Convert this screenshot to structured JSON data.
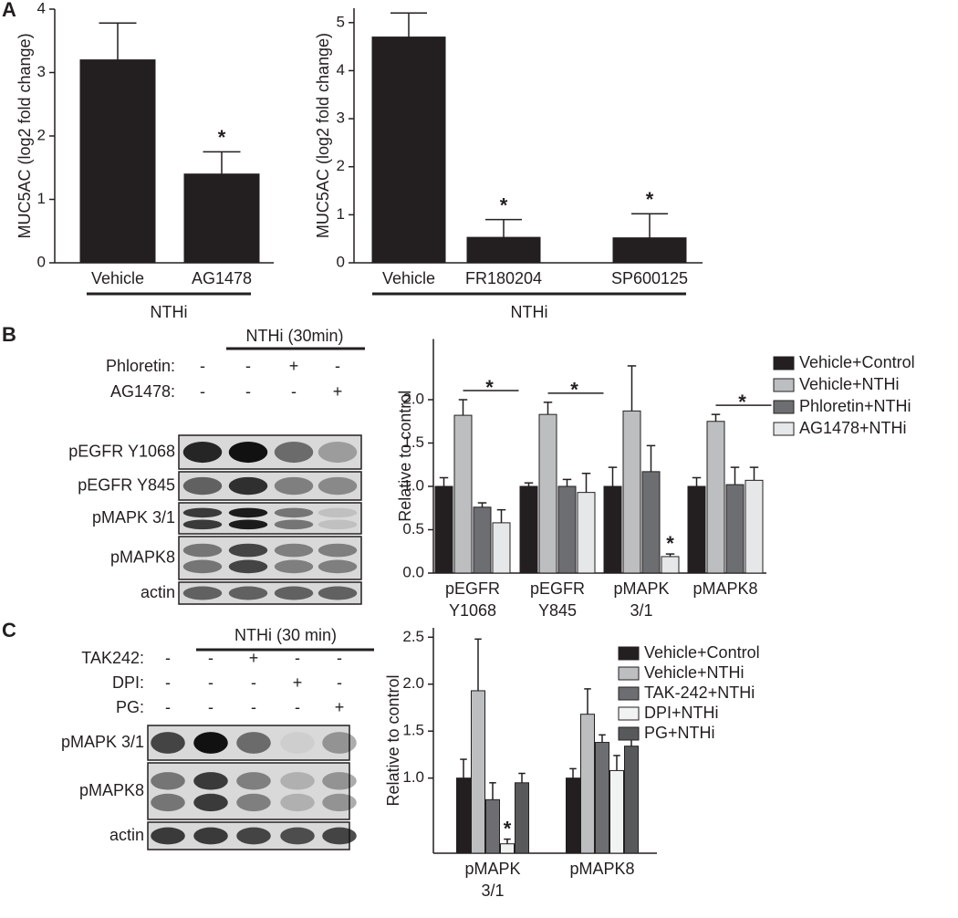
{
  "panels": [
    "A",
    "B",
    "C"
  ],
  "chart_data": [
    {
      "type": "bar",
      "ylabel": "MUC5AC (log2 fold change)",
      "categories": [
        "Vehicle",
        "AG1478"
      ],
      "values": [
        3.2,
        1.4
      ],
      "errors": [
        0.58,
        0.35
      ],
      "color": "#231f20",
      "ylim": [
        0,
        4
      ],
      "yticks": [
        0,
        1,
        2,
        3,
        4
      ],
      "group_label": "NTHi",
      "annotations": [
        {
          "text": "*",
          "category": 1
        }
      ]
    },
    {
      "type": "bar",
      "ylabel": "MUC5AC (log2 fold change)",
      "categories": [
        "Vehicle",
        "FR180204",
        "SP600125"
      ],
      "values": [
        4.7,
        0.53,
        0.52
      ],
      "errors": [
        0.5,
        0.37,
        0.5
      ],
      "color": "#231f20",
      "ylim": [
        0,
        5.3
      ],
      "yticks": [
        0,
        1,
        2,
        3,
        4,
        5
      ],
      "group_label": "NTHi",
      "annotations": [
        {
          "text": "*",
          "category": 1
        },
        {
          "text": "*",
          "category": 2
        }
      ]
    },
    {
      "type": "grouped_bar",
      "ylabel": "Relative to control",
      "categories": [
        "pEGFR Y1068",
        "pEGFR Y845",
        "pMAPK 3/1",
        "pMAPK8"
      ],
      "series": [
        {
          "name": "Vehicle+Control",
          "color": "#231f20",
          "values": [
            1.0,
            1.0,
            1.0,
            1.0
          ],
          "errors": [
            0.1,
            0.04,
            0.22,
            0.1
          ]
        },
        {
          "name": "Vehicle+NTHi",
          "color": "#bcbec0",
          "values": [
            1.82,
            1.83,
            1.87,
            1.75
          ],
          "errors": [
            0.18,
            0.14,
            0.52,
            0.08
          ]
        },
        {
          "name": "Phloretin+NTHi",
          "color": "#6d6e71",
          "values": [
            0.76,
            1.0,
            1.17,
            1.02
          ],
          "errors": [
            0.05,
            0.08,
            0.3,
            0.2
          ]
        },
        {
          "name": "AG1478+NTHi",
          "color": "#e6e7e8",
          "values": [
            0.58,
            0.93,
            0.19,
            1.07
          ],
          "errors": [
            0.15,
            0.22,
            0.03,
            0.15
          ]
        }
      ],
      "ylim": [
        0,
        2.7
      ],
      "yticks": [
        {
          "value": 0,
          "label": "0.0"
        },
        0.5,
        {
          "value": 1,
          "label": "1.0"
        },
        1.5,
        {
          "value": 2,
          "label": "2.0"
        }
      ],
      "annotations": [
        {
          "text": "*",
          "category": 0,
          "bracket": true
        },
        {
          "text": "*",
          "category": 1,
          "bracket": true
        },
        {
          "text": "*",
          "category": 2,
          "series": 3
        },
        {
          "text": "*",
          "category": 3,
          "bracket": true
        }
      ]
    },
    {
      "type": "grouped_bar",
      "ylabel": "Relative to control",
      "categories": [
        "pMAPK 3/1",
        "pMAPK8"
      ],
      "series": [
        {
          "name": "Vehicle+Control",
          "color": "#231f20",
          "values": [
            1.0,
            1.0
          ],
          "errors": [
            0.2,
            0.1
          ]
        },
        {
          "name": "Vehicle+NTHi",
          "color": "#bcbec0",
          "values": [
            1.93,
            1.68
          ],
          "errors": [
            0.55,
            0.27
          ]
        },
        {
          "name": "TAK-242+NTHi",
          "color": "#6d6e71",
          "values": [
            0.77,
            1.38
          ],
          "errors": [
            0.18,
            0.08
          ]
        },
        {
          "name": "DPI+NTHi",
          "color": "#f1f2f2",
          "values": [
            0.3,
            1.08
          ],
          "errors": [
            0.05,
            0.16
          ]
        },
        {
          "name": "PG+NTHi",
          "color": "#58595b",
          "values": [
            0.95,
            1.34
          ],
          "errors": [
            0.1,
            0.13
          ]
        }
      ],
      "ylim": [
        0.2,
        2.6
      ],
      "yticks": [
        {
          "value": 1,
          "label": "1.0"
        },
        1.5,
        {
          "value": 2,
          "label": "2.0"
        },
        2.5
      ],
      "annotations": [
        {
          "text": "*",
          "category": 0,
          "series": 3
        }
      ]
    }
  ],
  "blots": [
    {
      "header": "NTHi (30min)",
      "treatments": [
        {
          "label": "Phloretin:",
          "marks": [
            "-",
            "-",
            "+",
            "-"
          ]
        },
        {
          "label": "AG1478:",
          "marks": [
            "-",
            "-",
            "-",
            "+"
          ]
        }
      ],
      "bands": [
        "pEGFR Y1068",
        "pEGFR Y845",
        "pMAPK 3/1",
        "pMAPK8",
        "actin"
      ]
    },
    {
      "header": "NTHi (30 min)",
      "treatments": [
        {
          "label": "TAK242:",
          "marks": [
            "-",
            "-",
            "+",
            "-",
            "-"
          ]
        },
        {
          "label": "DPI:",
          "marks": [
            "-",
            "-",
            "-",
            "+",
            "-"
          ]
        },
        {
          "label": "PG:",
          "marks": [
            "-",
            "-",
            "-",
            "-",
            "+"
          ]
        }
      ],
      "bands": [
        "pMAPK 3/1",
        "pMAPK8",
        "actin"
      ]
    }
  ]
}
